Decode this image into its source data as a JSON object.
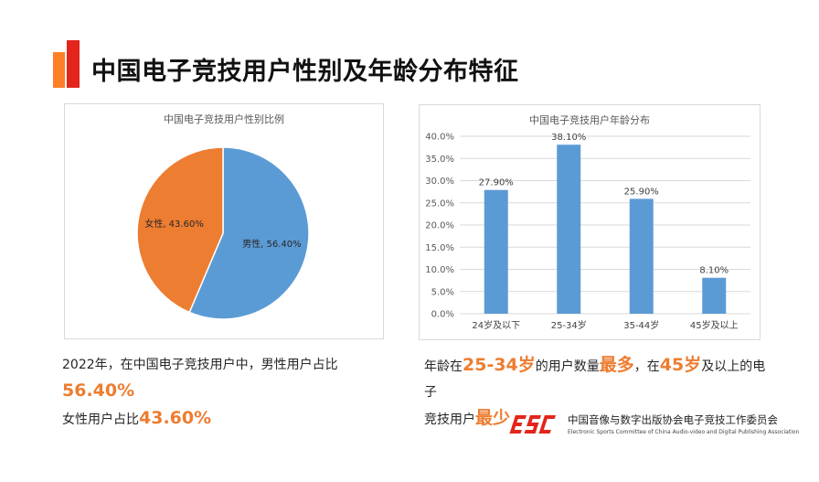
{
  "page": {
    "title": "中国电子竞技用户性别及年龄分布特征"
  },
  "colors": {
    "accent_orange": "#ff7f27",
    "accent_red": "#e3251b",
    "pie_male": "#5b9bd5",
    "pie_female": "#ed7d31",
    "bar": "#5b9bd5",
    "highlight": "#ed7d31"
  },
  "chart_data": [
    {
      "type": "pie",
      "title": "中国电子竞技用户性别比例",
      "slices": [
        {
          "label": "男性",
          "value": 56.4,
          "display": "男性, 56.40%"
        },
        {
          "label": "女性",
          "value": 43.6,
          "display": "女性, 43.60%"
        }
      ]
    },
    {
      "type": "bar",
      "title": "中国电子竞技用户年龄分布",
      "categories": [
        "24岁及以下",
        "25-34岁",
        "35-44岁",
        "45岁及以上"
      ],
      "values": [
        27.9,
        38.1,
        25.9,
        8.1
      ],
      "value_labels": [
        "27.90%",
        "38.10%",
        "25.90%",
        "8.10%"
      ],
      "ylim": [
        0,
        40
      ],
      "yticks": [
        "0.0%",
        "5.0%",
        "10.0%",
        "15.0%",
        "20.0%",
        "25.0%",
        "30.0%",
        "35.0%",
        "40.0%"
      ],
      "grid": true
    }
  ],
  "captions": {
    "left": {
      "line1_prefix": "2022年，在中国电子竞技用户中，男性用户占比",
      "line1_value": "56.40%",
      "line2_prefix": "女性用户占比",
      "line2_value": "43.60%"
    },
    "right": {
      "p1": "年龄在",
      "h1": "25-34岁",
      "p2": "的用户数量",
      "h2": "最多",
      "p3": "，在",
      "h3": "45岁",
      "p4": "及以上的电子",
      "p5": "竞技用户",
      "h4": "最少"
    }
  },
  "logo": {
    "mark": "ESC",
    "name_cn": "中国音像与数字出版协会电子竞技工作委员会",
    "name_en": "Electronic Sports Committee of China Audio-video and Digital Publishing Association"
  }
}
